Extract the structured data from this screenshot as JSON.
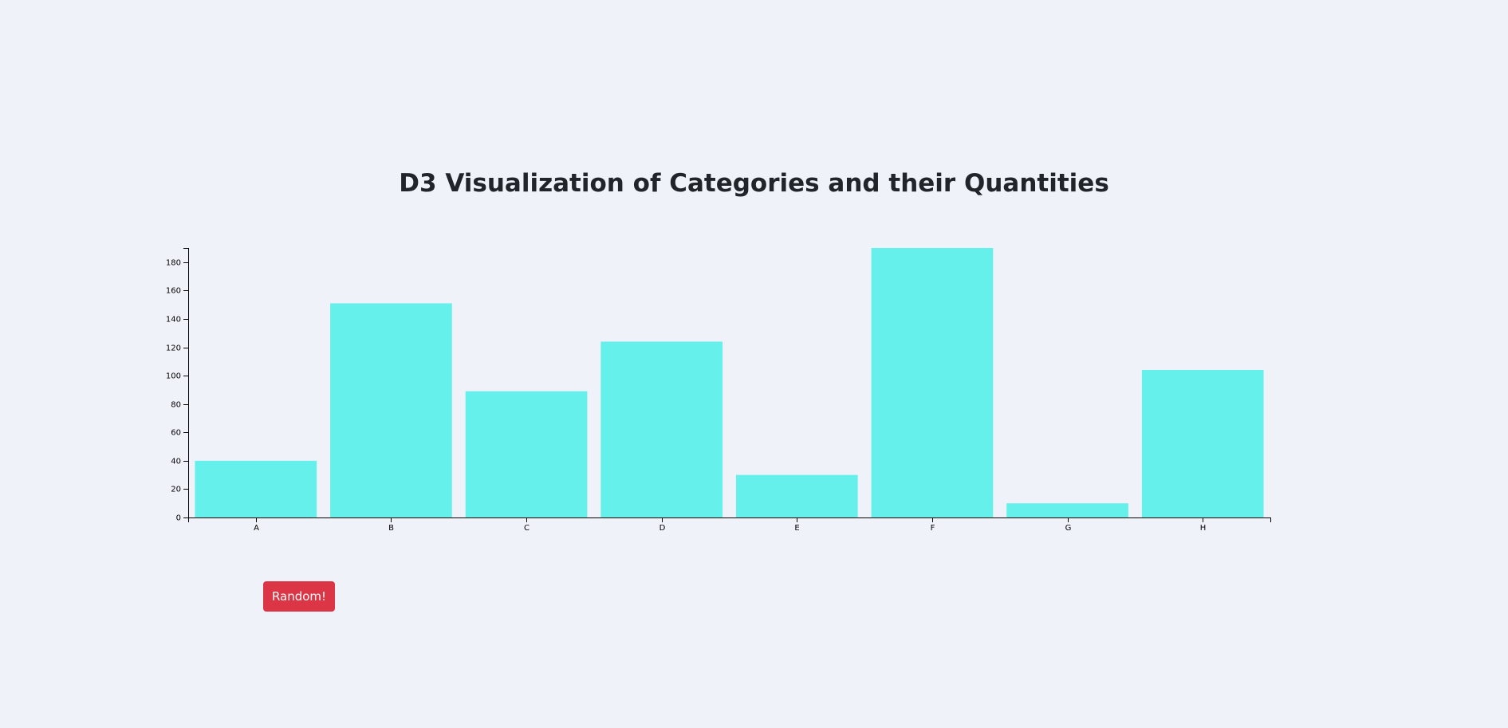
{
  "page": {
    "title": "D3 Visualization of Categories and their Quantities",
    "random_button_label": "Random!"
  },
  "colors": {
    "background": "#f0f2fa",
    "bar": "#66f0eb",
    "button": "#dc3545",
    "button_text": "#ffffff",
    "title": "#212529"
  },
  "chart_data": {
    "type": "bar",
    "categories": [
      "A",
      "B",
      "C",
      "D",
      "E",
      "F",
      "G",
      "H"
    ],
    "values": [
      40,
      151,
      89,
      124,
      30,
      190,
      10,
      104
    ],
    "title": "",
    "xlabel": "",
    "ylabel": "",
    "ylim": [
      0,
      190
    ],
    "yticks": [
      0,
      20,
      40,
      60,
      80,
      100,
      120,
      140,
      160,
      180
    ],
    "grid": false,
    "legend": "none"
  }
}
